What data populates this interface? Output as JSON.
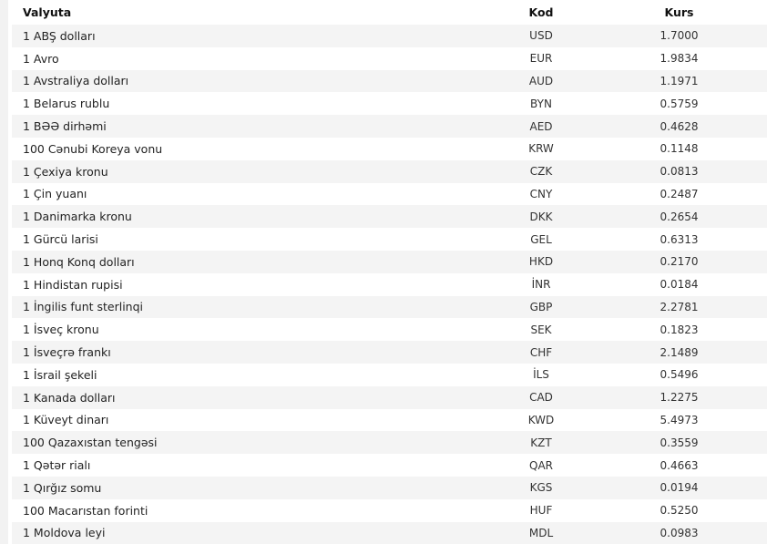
{
  "headers": {
    "currency": "Valyuta",
    "code": "Kod",
    "rate": "Kurs"
  },
  "rows": [
    {
      "name": "1 ABŞ dolları",
      "code": "USD",
      "rate": "1.7000"
    },
    {
      "name": "1 Avro",
      "code": "EUR",
      "rate": "1.9834"
    },
    {
      "name": "1 Avstraliya dolları",
      "code": "AUD",
      "rate": "1.1971"
    },
    {
      "name": "1 Belarus rublu",
      "code": "BYN",
      "rate": "0.5759"
    },
    {
      "name": "1 BƏƏ dirhəmi",
      "code": "AED",
      "rate": "0.4628"
    },
    {
      "name": "100 Cənubi Koreya vonu",
      "code": "KRW",
      "rate": "0.1148"
    },
    {
      "name": "1 Çexiya kronu",
      "code": "CZK",
      "rate": "0.0813"
    },
    {
      "name": "1 Çin yuanı",
      "code": "CNY",
      "rate": "0.2487"
    },
    {
      "name": "1 Danimarka kronu",
      "code": "DKK",
      "rate": "0.2654"
    },
    {
      "name": "1 Gürcü larisi",
      "code": "GEL",
      "rate": "0.6313"
    },
    {
      "name": "1 Honq Konq dolları",
      "code": "HKD",
      "rate": "0.2170"
    },
    {
      "name": "1 Hindistan rupisi",
      "code": "İNR",
      "rate": "0.0184"
    },
    {
      "name": "1 İngilis funt sterlinqi",
      "code": "GBP",
      "rate": "2.2781"
    },
    {
      "name": "1 İsveç kronu",
      "code": "SEK",
      "rate": "0.1823"
    },
    {
      "name": "1 İsveçrə frankı",
      "code": "CHF",
      "rate": "2.1489"
    },
    {
      "name": "1 İsrail şekeli",
      "code": "İLS",
      "rate": "0.5496"
    },
    {
      "name": "1 Kanada dolları",
      "code": "CAD",
      "rate": "1.2275"
    },
    {
      "name": "1 Küveyt dinarı",
      "code": "KWD",
      "rate": "5.4973"
    },
    {
      "name": "100 Qazaxıstan tengəsi",
      "code": "KZT",
      "rate": "0.3559"
    },
    {
      "name": "1 Qətər rialı",
      "code": "QAR",
      "rate": "0.4663"
    },
    {
      "name": "1 Qırğız somu",
      "code": "KGS",
      "rate": "0.0194"
    },
    {
      "name": "100 Macarıstan forinti",
      "code": "HUF",
      "rate": "0.5250"
    },
    {
      "name": "1 Moldova leyi",
      "code": "MDL",
      "rate": "0.0983"
    }
  ]
}
